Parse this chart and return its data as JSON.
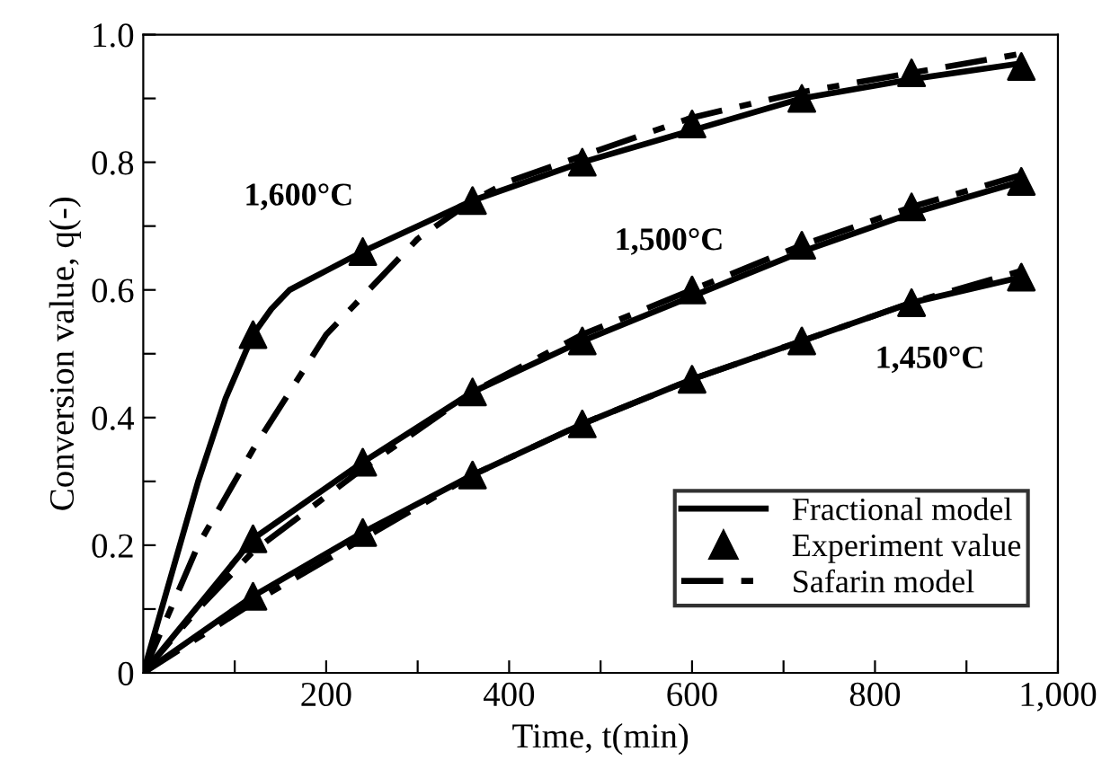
{
  "chart_data": {
    "type": "line",
    "xlabel": "Time, t(min)",
    "ylabel": "Conversion value, q(-)",
    "xlim": [
      0,
      1000
    ],
    "ylim": [
      0,
      1.0
    ],
    "xticks": [
      {
        "value": 100,
        "label": null
      },
      200,
      {
        "value": 300,
        "label": null
      },
      400,
      {
        "value": 500,
        "label": null
      },
      600,
      {
        "value": 700,
        "label": null
      },
      800,
      {
        "value": 900,
        "label": null
      },
      {
        "value": 1000,
        "label": "1,000"
      }
    ],
    "yticks": [
      0,
      {
        "value": 0.1,
        "label": null
      },
      0.2,
      {
        "value": 0.3,
        "label": null
      },
      0.4,
      {
        "value": 0.5,
        "label": null
      },
      0.6,
      {
        "value": 0.7,
        "label": null
      },
      0.8,
      {
        "value": 0.9,
        "label": null
      },
      {
        "value": 1.0,
        "label": "1.0"
      }
    ],
    "grid": false,
    "legend": "bottom right",
    "series": [
      {
        "name": "Fractional model",
        "line_style": "solid",
        "marker": "none",
        "color": "#000000",
        "x": [
          0,
          60,
          90,
          120,
          140,
          160,
          180,
          200,
          240,
          300,
          360,
          480,
          600,
          720,
          840,
          960
        ],
        "values": [
          0,
          0.3,
          0.43,
          0.53,
          0.57,
          0.6,
          0.615,
          0.63,
          0.66,
          0.7,
          0.74,
          0.8,
          0.85,
          0.9,
          0.93,
          0.955
        ]
      },
      {
        "line_style": "solid",
        "marker": "none",
        "color": "#000000",
        "x": [
          0,
          120,
          240,
          360,
          480,
          600,
          720,
          840,
          960
        ],
        "values": [
          0,
          0.21,
          0.33,
          0.44,
          0.52,
          0.59,
          0.66,
          0.72,
          0.77
        ]
      },
      {
        "line_style": "solid",
        "marker": "none",
        "color": "#000000",
        "x": [
          0,
          120,
          240,
          360,
          480,
          600,
          720,
          840,
          960
        ],
        "values": [
          0,
          0.12,
          0.22,
          0.31,
          0.39,
          0.46,
          0.52,
          0.58,
          0.62
        ]
      },
      {
        "name": "Experiment value",
        "type": "scatter",
        "marker": "triangle",
        "color": "#000000",
        "x": [
          120,
          240,
          360,
          480,
          600,
          720,
          840,
          960
        ],
        "values": [
          0.53,
          0.66,
          0.74,
          0.8,
          0.86,
          0.9,
          0.94,
          0.95
        ]
      },
      {
        "type": "scatter",
        "marker": "triangle",
        "color": "#000000",
        "x": [
          120,
          240,
          360,
          480,
          600,
          720,
          840,
          960
        ],
        "values": [
          0.21,
          0.33,
          0.44,
          0.52,
          0.6,
          0.67,
          0.73,
          0.77
        ]
      },
      {
        "type": "scatter",
        "marker": "triangle",
        "color": "#000000",
        "x": [
          120,
          240,
          360,
          480,
          600,
          720,
          840,
          960
        ],
        "values": [
          0.12,
          0.22,
          0.31,
          0.39,
          0.46,
          0.52,
          0.58,
          0.62
        ]
      },
      {
        "name": "Safarin model",
        "line_style": "dashed",
        "marker": "none",
        "color": "#000000",
        "x": [
          0,
          60,
          120,
          200,
          300,
          360,
          400,
          500,
          600,
          720,
          840,
          960
        ],
        "values": [
          0,
          0.2,
          0.35,
          0.53,
          0.68,
          0.74,
          0.77,
          0.82,
          0.87,
          0.91,
          0.94,
          0.97
        ]
      },
      {
        "line_style": "dashed",
        "marker": "none",
        "color": "#000000",
        "x": [
          0,
          60,
          120,
          240,
          360,
          480,
          600,
          720,
          840,
          960
        ],
        "values": [
          0,
          0.1,
          0.19,
          0.32,
          0.44,
          0.53,
          0.6,
          0.67,
          0.73,
          0.78
        ]
      },
      {
        "line_style": "dashed",
        "marker": "none",
        "color": "#000000",
        "x": [
          0,
          120,
          240,
          360,
          480,
          600,
          720,
          840,
          960
        ],
        "values": [
          0,
          0.11,
          0.21,
          0.31,
          0.39,
          0.46,
          0.52,
          0.58,
          0.63
        ]
      }
    ],
    "annotations": [
      "1,600°C",
      "1,500°C",
      "1,450°C"
    ]
  }
}
